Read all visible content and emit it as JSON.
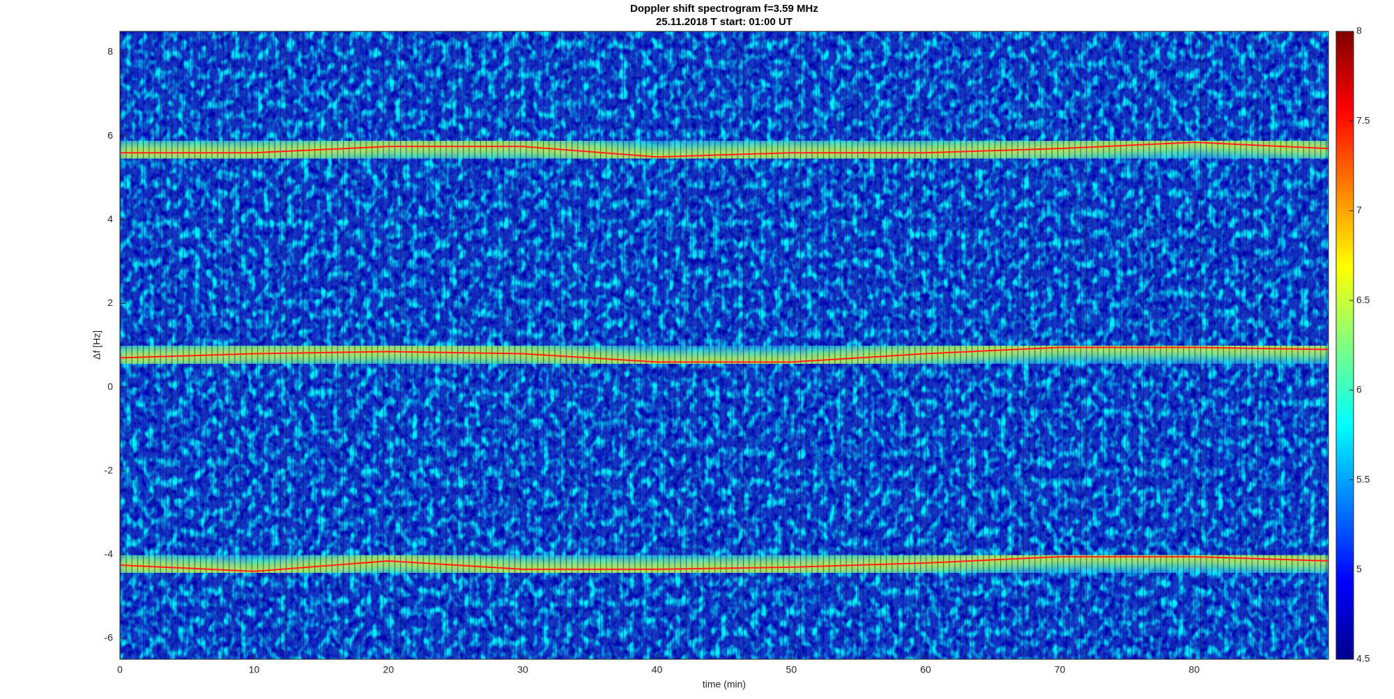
{
  "chart_data": {
    "type": "spectrogram",
    "title": "Doppler shift spectrogram f=3.59 MHz",
    "subtitle": "25.11.2018   T start: 01:00 UT",
    "x_label": "time (min)",
    "y_label": "Δf [Hz]",
    "xlim": [
      0,
      90
    ],
    "xticks": [
      0,
      10,
      20,
      30,
      40,
      50,
      60,
      70,
      80
    ],
    "ylim": [
      -6.5,
      8.5
    ],
    "yticks": [
      -6,
      -4,
      -2,
      0,
      2,
      4,
      6,
      8
    ],
    "colormap": "jet",
    "clim": [
      4.5,
      8
    ],
    "cticks": [
      4.5,
      5,
      5.5,
      6,
      6.5,
      7,
      7.5,
      8
    ],
    "x": [
      0,
      10,
      20,
      30,
      40,
      50,
      60,
      70,
      80,
      90
    ],
    "series": [
      {
        "color": "#ff2020",
        "values": [
          5.6,
          5.6,
          5.75,
          5.75,
          5.5,
          5.6,
          5.6,
          5.7,
          5.85,
          5.7
        ]
      },
      {
        "color": "#ff2020",
        "values": [
          0.7,
          0.8,
          0.85,
          0.8,
          0.6,
          0.6,
          0.8,
          0.95,
          0.95,
          0.9
        ]
      },
      {
        "color": "#ff2020",
        "values": [
          -4.25,
          -4.4,
          -4.15,
          -4.35,
          -4.35,
          -4.3,
          -4.2,
          -4.05,
          -4.05,
          -4.15
        ]
      }
    ]
  }
}
